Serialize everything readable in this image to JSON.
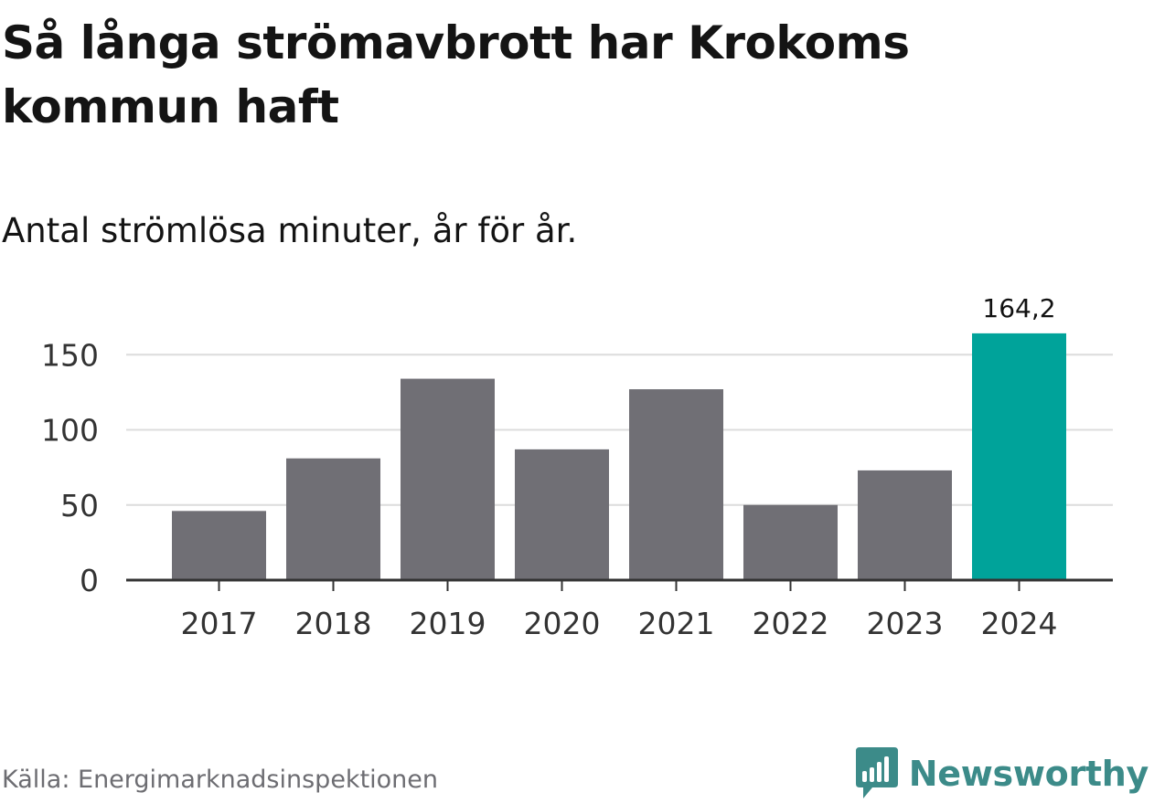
{
  "title": "Så långa strömavbrott har Krokoms kommun haft",
  "subtitle": "Antal strömlösa minuter, år för år.",
  "source": "Källa: Energimarknadsinspektionen",
  "brand": {
    "name": "Newsworthy",
    "icon": "newsworthy-logo-icon",
    "color": "#3c8b89"
  },
  "colors": {
    "bar": "#706f75",
    "highlight": "#00a39a",
    "grid": "#dcdcdc",
    "axis": "#333333"
  },
  "chart_data": {
    "type": "bar",
    "categories": [
      "2017",
      "2018",
      "2019",
      "2020",
      "2021",
      "2022",
      "2023",
      "2024"
    ],
    "values": [
      46,
      81,
      134,
      87,
      127,
      50,
      73,
      164.2
    ],
    "highlight_index": 7,
    "data_labels": [
      {
        "index": 7,
        "text": "164,2"
      }
    ],
    "yticks": [
      0,
      50,
      100,
      150
    ],
    "ytick_labels": [
      "0",
      "50",
      "100",
      "150"
    ],
    "ylim": [
      0,
      165
    ],
    "grid": true,
    "legend": "none"
  }
}
